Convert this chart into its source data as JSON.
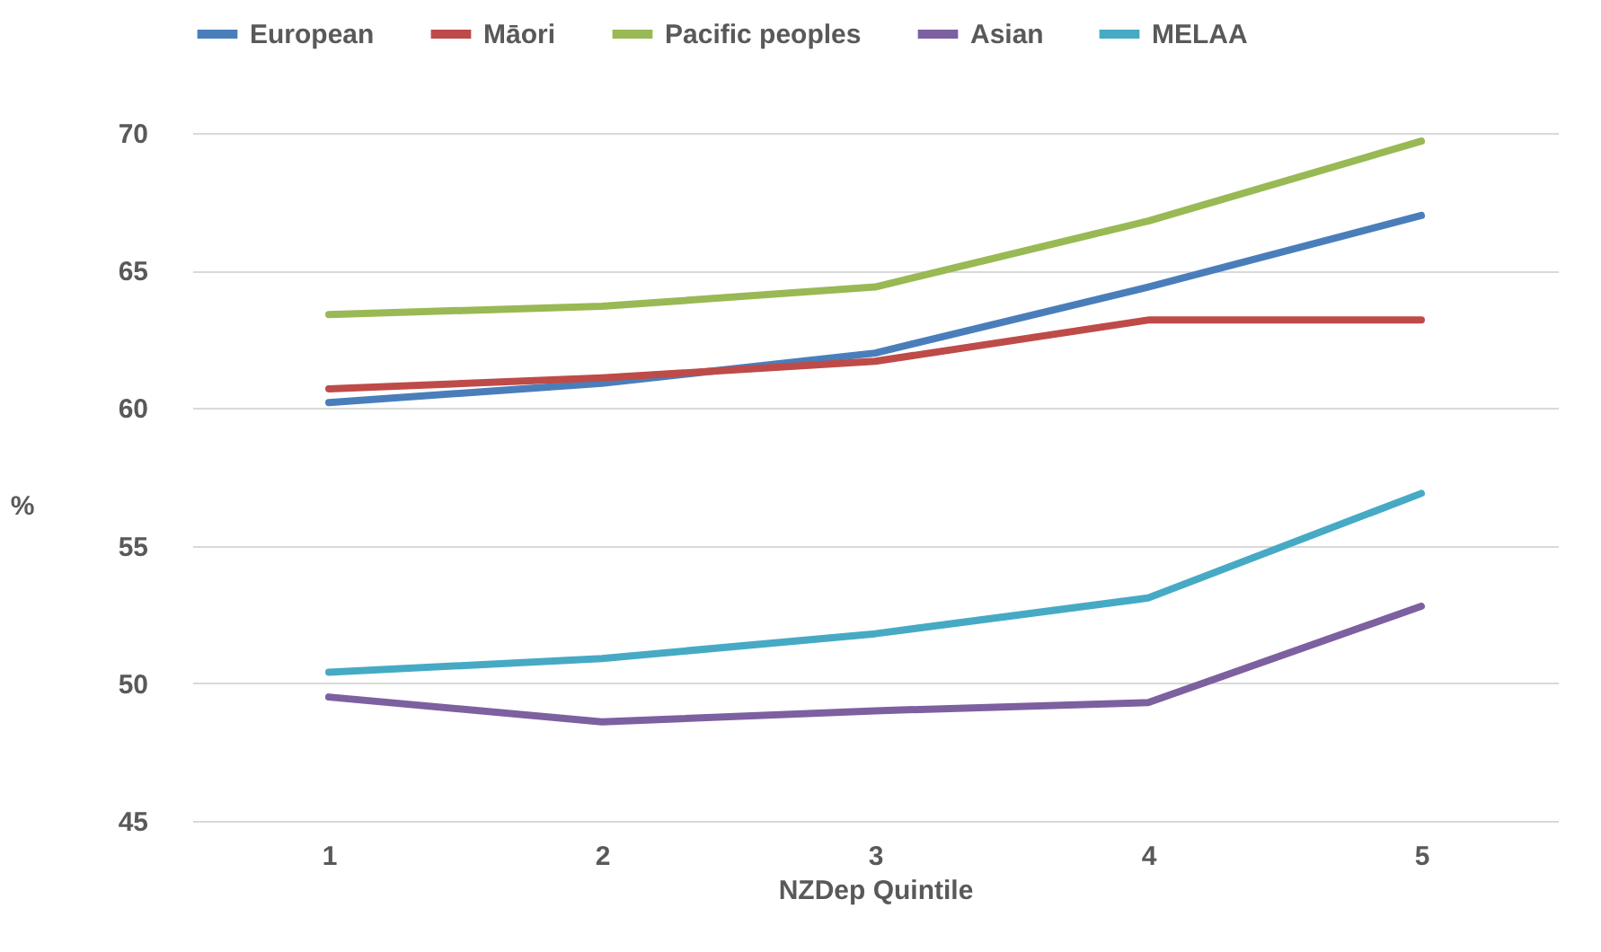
{
  "chart_data": {
    "type": "line",
    "xlabel": "NZDep Quintile",
    "ylabel": "%",
    "categories": [
      "1",
      "2",
      "3",
      "4",
      "5"
    ],
    "series": [
      {
        "name": "European",
        "color": "#4a7ebb",
        "values": [
          60.2,
          60.9,
          62.0,
          64.4,
          67.0
        ]
      },
      {
        "name": "Māori",
        "color": "#be4b48",
        "values": [
          60.7,
          61.1,
          61.7,
          63.2,
          63.2
        ]
      },
      {
        "name": "Pacific peoples",
        "color": "#98b954",
        "values": [
          63.4,
          63.7,
          64.4,
          66.8,
          69.7
        ]
      },
      {
        "name": "Asian",
        "color": "#7d60a0",
        "values": [
          49.5,
          48.6,
          49.0,
          49.3,
          52.8
        ]
      },
      {
        "name": "MELAA",
        "color": "#46aac5",
        "values": [
          50.4,
          50.9,
          51.8,
          53.1,
          56.9
        ]
      }
    ],
    "ylim": [
      45,
      70
    ],
    "yticks": [
      45,
      50,
      55,
      60,
      65,
      70
    ],
    "grid": "y",
    "legend": "top",
    "marker": "none",
    "line_style": "solid"
  }
}
